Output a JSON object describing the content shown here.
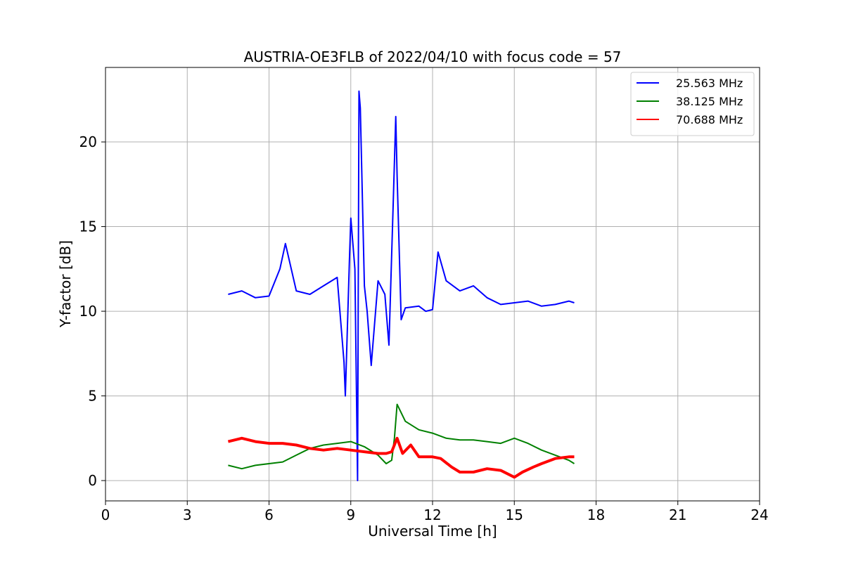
{
  "chart_data": {
    "type": "line",
    "title": "AUSTRIA-OE3FLB of 2022/04/10 with focus code = 57",
    "xlabel": "Universal Time [h]",
    "ylabel": "Y-factor [dB]",
    "xlim": [
      0,
      24
    ],
    "ylim": [
      -1.2,
      24.4
    ],
    "xticks": [
      0,
      3,
      6,
      9,
      12,
      15,
      18,
      21,
      24
    ],
    "yticks": [
      0,
      5,
      10,
      15,
      20
    ],
    "grid": true,
    "legend_position": "top-right",
    "series": [
      {
        "name": "25.563 MHz",
        "color": "#0000ff",
        "x": [
          4.5,
          5.0,
          5.5,
          6.0,
          6.4,
          6.6,
          7.0,
          7.5,
          8.0,
          8.5,
          8.75,
          8.8,
          8.95,
          9.0,
          9.15,
          9.25,
          9.3,
          9.35,
          9.5,
          9.6,
          9.75,
          10.0,
          10.25,
          10.4,
          10.55,
          10.65,
          10.7,
          10.85,
          11.0,
          11.5,
          11.75,
          12.0,
          12.2,
          12.5,
          13.0,
          13.5,
          14.0,
          14.5,
          15.0,
          15.5,
          16.0,
          16.5,
          17.0,
          17.2
        ],
        "values": [
          11.0,
          11.2,
          10.8,
          10.9,
          12.5,
          14.0,
          11.2,
          11.0,
          11.5,
          12.0,
          7.0,
          5.0,
          13.0,
          15.5,
          12.5,
          0.0,
          23.0,
          22.0,
          11.5,
          10.0,
          6.8,
          11.8,
          11.0,
          8.0,
          16.0,
          21.5,
          18.0,
          9.5,
          10.2,
          10.3,
          10.0,
          10.1,
          13.5,
          11.8,
          11.2,
          11.5,
          10.8,
          10.4,
          10.5,
          10.6,
          10.3,
          10.4,
          10.6,
          10.5
        ]
      },
      {
        "name": "38.125 MHz",
        "color": "#008000",
        "x": [
          4.5,
          5.0,
          5.5,
          6.0,
          6.5,
          7.0,
          7.5,
          8.0,
          8.5,
          9.0,
          9.5,
          10.0,
          10.3,
          10.5,
          10.6,
          10.7,
          11.0,
          11.5,
          12.0,
          12.5,
          13.0,
          13.5,
          14.0,
          14.5,
          15.0,
          15.5,
          16.0,
          16.5,
          17.0,
          17.2
        ],
        "values": [
          0.9,
          0.7,
          0.9,
          1.0,
          1.1,
          1.5,
          1.9,
          2.1,
          2.2,
          2.3,
          2.0,
          1.5,
          1.0,
          1.2,
          2.5,
          4.5,
          3.5,
          3.0,
          2.8,
          2.5,
          2.4,
          2.4,
          2.3,
          2.2,
          2.5,
          2.2,
          1.8,
          1.5,
          1.2,
          1.0
        ]
      },
      {
        "name": "70.688 MHz",
        "color": "#ff0000",
        "x": [
          4.5,
          5.0,
          5.5,
          6.0,
          6.5,
          7.0,
          7.5,
          8.0,
          8.5,
          9.0,
          9.5,
          10.0,
          10.3,
          10.5,
          10.7,
          10.9,
          11.2,
          11.5,
          12.0,
          12.3,
          12.7,
          13.0,
          13.5,
          14.0,
          14.5,
          15.0,
          15.3,
          15.7,
          16.0,
          16.5,
          17.0,
          17.2
        ],
        "values": [
          2.3,
          2.5,
          2.3,
          2.2,
          2.2,
          2.1,
          1.9,
          1.8,
          1.9,
          1.8,
          1.7,
          1.6,
          1.6,
          1.7,
          2.5,
          1.6,
          2.1,
          1.4,
          1.4,
          1.3,
          0.8,
          0.5,
          0.5,
          0.7,
          0.6,
          0.2,
          0.5,
          0.8,
          1.0,
          1.3,
          1.4,
          1.4
        ]
      }
    ]
  }
}
